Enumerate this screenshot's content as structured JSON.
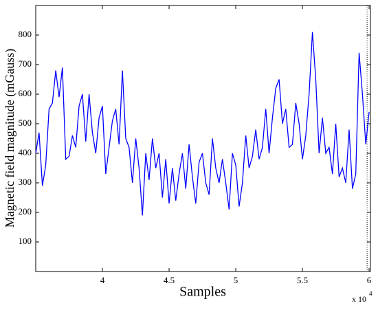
{
  "chart_data": {
    "type": "line",
    "x_label": "Samples",
    "y_label": "Magnetic field magnitude (mGauss)",
    "x_multiplier": {
      "base": "x 10",
      "exponent": "4"
    },
    "xlim": [
      35000,
      60100
    ],
    "ylim": [
      0,
      900
    ],
    "xticks": [
      {
        "value": 40000,
        "label": "4"
      },
      {
        "value": 45000,
        "label": "4.5"
      },
      {
        "value": 50000,
        "label": "5"
      },
      {
        "value": 55000,
        "label": "5.5"
      },
      {
        "value": 60000,
        "label": "6"
      }
    ],
    "yticks": [
      100,
      200,
      300,
      400,
      500,
      600,
      700,
      800
    ],
    "vline_x": 59850,
    "grid": false,
    "x": [
      35000,
      35250,
      35500,
      35750,
      36000,
      36250,
      36500,
      36750,
      37000,
      37250,
      37500,
      37750,
      38000,
      38250,
      38500,
      38750,
      39000,
      39250,
      39500,
      39750,
      40000,
      40250,
      40500,
      40750,
      41000,
      41250,
      41500,
      41750,
      42000,
      42250,
      42500,
      42750,
      43000,
      43250,
      43500,
      43750,
      44000,
      44250,
      44500,
      44750,
      45000,
      45250,
      45500,
      45750,
      46000,
      46250,
      46500,
      46750,
      47000,
      47250,
      47500,
      47750,
      48000,
      48250,
      48500,
      48750,
      49000,
      49250,
      49500,
      49750,
      50000,
      50250,
      50500,
      50750,
      51000,
      51250,
      51500,
      51750,
      52000,
      52250,
      52500,
      52750,
      53000,
      53250,
      53500,
      53750,
      54000,
      54250,
      54500,
      54750,
      55000,
      55250,
      55500,
      55750,
      56000,
      56250,
      56500,
      56750,
      57000,
      57250,
      57500,
      57750,
      58000,
      58250,
      58500,
      58750,
      59000,
      59250,
      59500,
      59750,
      60000
    ],
    "series": [
      {
        "color": "#0000ff",
        "values": [
          400,
          470,
          290,
          360,
          550,
          570,
          680,
          590,
          690,
          380,
          390,
          460,
          420,
          560,
          600,
          440,
          600,
          470,
          400,
          520,
          560,
          330,
          420,
          510,
          550,
          430,
          680,
          450,
          420,
          300,
          450,
          350,
          190,
          400,
          310,
          450,
          350,
          400,
          250,
          380,
          230,
          350,
          240,
          330,
          400,
          280,
          430,
          320,
          230,
          370,
          400,
          300,
          260,
          450,
          350,
          300,
          380,
          300,
          210,
          400,
          360,
          220,
          300,
          460,
          350,
          390,
          480,
          380,
          420,
          550,
          400,
          520,
          620,
          650,
          500,
          550,
          420,
          430,
          570,
          500,
          380,
          460,
          600,
          810,
          650,
          400,
          520,
          400,
          420,
          330,
          500,
          320,
          350,
          300,
          480,
          280,
          330,
          740,
          600,
          430,
          540
        ]
      }
    ]
  }
}
